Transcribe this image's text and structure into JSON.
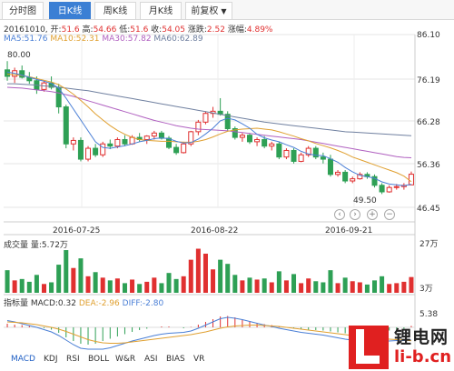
{
  "tabs": [
    {
      "label": "分时图",
      "active": false
    },
    {
      "label": "日K线",
      "active": true
    },
    {
      "label": "周K线",
      "active": false
    },
    {
      "label": "月K线",
      "active": false
    },
    {
      "label": "前复权",
      "active": false
    }
  ],
  "info": {
    "date": "20161010,",
    "open_label": "开:",
    "open": "51.6",
    "high_label": "高:",
    "high": "54.66",
    "low_label": "低:",
    "low": "51.6",
    "close_label": "收:",
    "close": "54.05",
    "change_label": "涨跌:",
    "change": "2.52",
    "pct_label": "涨幅:",
    "pct": "4.89%"
  },
  "ma": {
    "ma5": "MA5:51.76",
    "ma10": "MA10:52.31",
    "ma30": "MA30:57.82",
    "ma60": "MA60:62.89"
  },
  "colors": {
    "up": "#e03030",
    "down": "#2ea055",
    "ma5": "#4a7fd6",
    "ma10": "#e0a030",
    "ma30": "#b060c0",
    "ma60": "#7080a0",
    "tab_active": "#3b7fd4"
  },
  "price_axis": [
    "86.10",
    "76.19",
    "66.28",
    "56.36",
    "46.45"
  ],
  "date_axis": [
    "2016-07-25",
    "2016-08-22",
    "2016-09-21"
  ],
  "annotations": {
    "high": "80.00",
    "low": "49.50"
  },
  "volume": {
    "label": "成交量 量:5.72万",
    "axis": [
      "27万",
      "3万"
    ]
  },
  "macd": {
    "label": "指标量",
    "macd": "MACD:0.32",
    "dea": "DEA:-2.96",
    "diff": "DIFF:-2.80",
    "axis_top": "5.38"
  },
  "indicator_tabs": [
    "MACD",
    "KDJ",
    "RSI",
    "BOLL",
    "W&R",
    "ASI",
    "BIAS",
    "VR"
  ],
  "nav_icons": [
    "zoom-out",
    "zoom-in",
    "prev",
    "next"
  ],
  "logo": {
    "cn": "锂电网",
    "en": "li-b.cn"
  },
  "chart_data": {
    "type": "candlestick",
    "y_range": [
      46.45,
      86.1
    ],
    "candles": [
      [
        78.0,
        80.0,
        75.5,
        76.5
      ],
      [
        76.5,
        78.5,
        75.0,
        77.8
      ],
      [
        77.8,
        79.0,
        76.0,
        76.3
      ],
      [
        76.3,
        77.5,
        74.8,
        75.5
      ],
      [
        75.5,
        76.5,
        72.5,
        73.5
      ],
      [
        73.5,
        75.5,
        73.0,
        75.0
      ],
      [
        75.0,
        76.5,
        73.5,
        74.0
      ],
      [
        74.0,
        74.8,
        68.0,
        69.5
      ],
      [
        69.5,
        70.0,
        60.0,
        61.0
      ],
      [
        61.0,
        62.5,
        59.5,
        61.8
      ],
      [
        61.8,
        62.5,
        57.0,
        57.5
      ],
      [
        57.5,
        60.5,
        57.0,
        60.0
      ],
      [
        60.0,
        61.0,
        58.0,
        58.5
      ],
      [
        58.5,
        61.5,
        58.0,
        61.0
      ],
      [
        61.0,
        62.0,
        59.8,
        60.5
      ],
      [
        60.5,
        62.5,
        60.0,
        62.0
      ],
      [
        62.0,
        63.0,
        60.5,
        61.0
      ],
      [
        61.0,
        63.0,
        60.8,
        62.5
      ],
      [
        62.5,
        63.5,
        61.5,
        62.0
      ],
      [
        62.0,
        63.0,
        61.0,
        62.8
      ],
      [
        62.8,
        64.0,
        62.0,
        63.5
      ],
      [
        63.5,
        64.0,
        62.0,
        62.3
      ],
      [
        62.3,
        62.8,
        59.8,
        60.2
      ],
      [
        60.2,
        61.0,
        58.5,
        59.0
      ],
      [
        59.0,
        61.5,
        58.8,
        61.0
      ],
      [
        61.0,
        64.0,
        60.5,
        63.8
      ],
      [
        63.8,
        66.5,
        63.0,
        66.0
      ],
      [
        66.0,
        68.5,
        65.5,
        68.0
      ],
      [
        68.0,
        69.5,
        67.0,
        68.5
      ],
      [
        68.5,
        71.5,
        67.5,
        67.8
      ],
      [
        67.8,
        68.5,
        64.0,
        64.5
      ],
      [
        64.5,
        65.0,
        62.0,
        62.5
      ],
      [
        62.5,
        63.5,
        61.5,
        63.0
      ],
      [
        63.0,
        63.5,
        61.0,
        61.5
      ],
      [
        61.5,
        62.5,
        60.5,
        62.0
      ],
      [
        62.0,
        62.8,
        60.0,
        60.5
      ],
      [
        60.5,
        61.5,
        59.5,
        61.0
      ],
      [
        61.0,
        61.5,
        57.5,
        58.0
      ],
      [
        58.0,
        60.0,
        57.5,
        59.5
      ],
      [
        59.5,
        60.0,
        56.5,
        57.0
      ],
      [
        57.0,
        59.0,
        56.8,
        58.5
      ],
      [
        58.5,
        60.5,
        58.0,
        60.0
      ],
      [
        60.0,
        60.5,
        57.5,
        58.0
      ],
      [
        58.0,
        59.0,
        56.5,
        57.5
      ],
      [
        57.5,
        58.5,
        53.5,
        54.0
      ],
      [
        54.0,
        55.0,
        53.5,
        54.5
      ],
      [
        54.5,
        55.0,
        52.0,
        52.5
      ],
      [
        52.5,
        53.5,
        52.0,
        53.0
      ],
      [
        53.0,
        54.5,
        52.8,
        54.0
      ],
      [
        54.0,
        54.5,
        53.0,
        53.5
      ],
      [
        53.5,
        54.0,
        51.0,
        51.5
      ],
      [
        51.5,
        52.0,
        49.5,
        50.0
      ],
      [
        50.0,
        51.5,
        49.8,
        51.0
      ],
      [
        51.0,
        51.8,
        50.5,
        51.2
      ],
      [
        51.2,
        52.0,
        50.5,
        51.5
      ],
      [
        51.6,
        54.66,
        51.6,
        54.05
      ]
    ],
    "ma5": [
      77.5,
      77.2,
      76.8,
      76.3,
      75.8,
      75.4,
      74.9,
      73.8,
      71.5,
      69.0,
      66.5,
      64.0,
      61.5,
      60.2,
      60.0,
      60.3,
      60.6,
      61.0,
      61.5,
      61.8,
      62.2,
      62.4,
      62.2,
      61.6,
      61.2,
      61.3,
      62.1,
      63.3,
      64.6,
      66.3,
      66.9,
      66.5,
      65.6,
      64.6,
      63.2,
      62.4,
      61.9,
      61.5,
      60.8,
      60.2,
      59.3,
      58.7,
      58.4,
      58.3,
      57.6,
      56.8,
      55.6,
      54.6,
      53.8,
      53.5,
      53.1,
      52.3,
      51.8,
      51.6,
      51.4,
      51.76
    ],
    "ma10": [
      77.0,
      76.9,
      76.7,
      76.4,
      76.0,
      75.6,
      75.2,
      74.6,
      73.6,
      72.4,
      71.0,
      69.5,
      67.9,
      66.5,
      65.2,
      64.1,
      63.2,
      62.5,
      62.0,
      61.8,
      61.7,
      61.6,
      61.6,
      61.5,
      61.4,
      61.4,
      61.6,
      62.0,
      62.6,
      63.3,
      63.9,
      64.2,
      64.4,
      64.5,
      64.6,
      64.4,
      64.2,
      63.8,
      63.3,
      62.8,
      62.2,
      61.7,
      61.1,
      60.6,
      60.1,
      59.5,
      58.8,
      58.0,
      57.4,
      56.8,
      56.2,
      55.6,
      55.0,
      54.4,
      53.6,
      52.31
    ],
    "ma30": [
      74.0,
      73.9,
      73.8,
      73.6,
      73.4,
      73.2,
      73.0,
      72.7,
      72.3,
      71.9,
      71.4,
      70.9,
      70.4,
      69.9,
      69.4,
      68.9,
      68.4,
      67.9,
      67.4,
      66.9,
      66.4,
      66.0,
      65.6,
      65.2,
      64.9,
      64.6,
      64.4,
      64.3,
      64.2,
      64.1,
      64.0,
      63.8,
      63.6,
      63.4,
      63.2,
      63.0,
      62.8,
      62.6,
      62.4,
      62.2,
      62.0,
      61.7,
      61.4,
      61.1,
      60.8,
      60.5,
      60.2,
      59.9,
      59.6,
      59.3,
      59.0,
      58.7,
      58.4,
      58.1,
      57.9,
      57.82
    ],
    "ma60": [
      74.8,
      74.8,
      74.7,
      74.6,
      74.5,
      74.3,
      74.2,
      74.0,
      73.8,
      73.6,
      73.4,
      73.2,
      72.9,
      72.6,
      72.3,
      72.0,
      71.7,
      71.4,
      71.1,
      70.8,
      70.5,
      70.2,
      69.9,
      69.6,
      69.3,
      69.0,
      68.7,
      68.4,
      68.1,
      67.8,
      67.5,
      67.2,
      66.9,
      66.6,
      66.3,
      66.0,
      65.8,
      65.6,
      65.4,
      65.2,
      65.0,
      64.8,
      64.6,
      64.4,
      64.2,
      64.0,
      63.8,
      63.7,
      63.6,
      63.5,
      63.4,
      63.3,
      63.2,
      63.1,
      63.0,
      62.89
    ],
    "volume": [
      8.2,
      4.5,
      5.0,
      4.0,
      6.5,
      3.2,
      3.8,
      10.2,
      15.5,
      9.0,
      12.5,
      6.0,
      7.5,
      5.5,
      4.5,
      5.2,
      3.5,
      4.8,
      3.2,
      4.0,
      5.5,
      3.5,
      7.2,
      5.0,
      6.0,
      12.0,
      16.0,
      14.2,
      8.5,
      12.0,
      10.5,
      6.5,
      4.5,
      5.5,
      4.8,
      5.2,
      3.8,
      7.8,
      4.5,
      6.8,
      3.5,
      5.2,
      4.2,
      3.8,
      8.2,
      3.5,
      5.5,
      4.2,
      3.8,
      3.0,
      4.5,
      6.0,
      3.2,
      3.5,
      4.0,
      5.72
    ],
    "macd_hist": [
      0.8,
      0.6,
      0.5,
      0.3,
      0.0,
      -0.2,
      -0.5,
      -1.2,
      -2.2,
      -3.0,
      -3.6,
      -3.8,
      -3.6,
      -3.0,
      -2.5,
      -2.0,
      -1.5,
      -1.0,
      -0.6,
      -0.3,
      0.0,
      0.2,
      0.2,
      0.0,
      -0.2,
      0.1,
      0.6,
      1.2,
      1.8,
      2.4,
      2.5,
      2.2,
      1.8,
      1.4,
      1.0,
      0.7,
      0.5,
      0.2,
      0.0,
      -0.2,
      -0.4,
      -0.5,
      -0.6,
      -0.7,
      -0.9,
      -1.1,
      -1.3,
      -1.3,
      -1.2,
      -1.0,
      -0.9,
      -0.9,
      -0.7,
      -0.5,
      -0.3,
      0.32
    ],
    "macd_diff": [
      1.5,
      1.2,
      0.8,
      0.4,
      0.0,
      -0.5,
      -1.0,
      -1.8,
      -2.8,
      -3.8,
      -4.6,
      -5.1,
      -5.2,
      -4.9,
      -4.5,
      -4.0,
      -3.5,
      -3.0,
      -2.6,
      -2.2,
      -1.8,
      -1.5,
      -1.3,
      -1.2,
      -1.1,
      -0.8,
      -0.2,
      0.5,
      1.2,
      1.9,
      2.2,
      2.0,
      1.7,
      1.3,
      0.9,
      0.5,
      0.2,
      -0.2,
      -0.5,
      -0.8,
      -1.1,
      -1.3,
      -1.5,
      -1.7,
      -2.0,
      -2.3,
      -2.6,
      -2.8,
      -2.9,
      -2.9,
      -3.0,
      -3.0,
      -3.0,
      -2.9,
      -2.9,
      -2.8
    ],
    "macd_dea": [
      1.2,
      1.1,
      1.0,
      0.8,
      0.6,
      0.3,
      0.0,
      -0.4,
      -0.9,
      -1.5,
      -2.1,
      -2.7,
      -3.1,
      -3.4,
      -3.5,
      -3.5,
      -3.4,
      -3.2,
      -3.0,
      -2.8,
      -2.6,
      -2.4,
      -2.2,
      -2.0,
      -1.8,
      -1.6,
      -1.3,
      -1.0,
      -0.6,
      -0.2,
      0.1,
      0.3,
      0.4,
      0.5,
      0.5,
      0.4,
      0.3,
      0.2,
      0.0,
      -0.2,
      -0.4,
      -0.6,
      -0.8,
      -1.0,
      -1.2,
      -1.4,
      -1.6,
      -1.8,
      -2.0,
      -2.2,
      -2.4,
      -2.5,
      -2.6,
      -2.7,
      -2.8,
      -2.96
    ]
  }
}
